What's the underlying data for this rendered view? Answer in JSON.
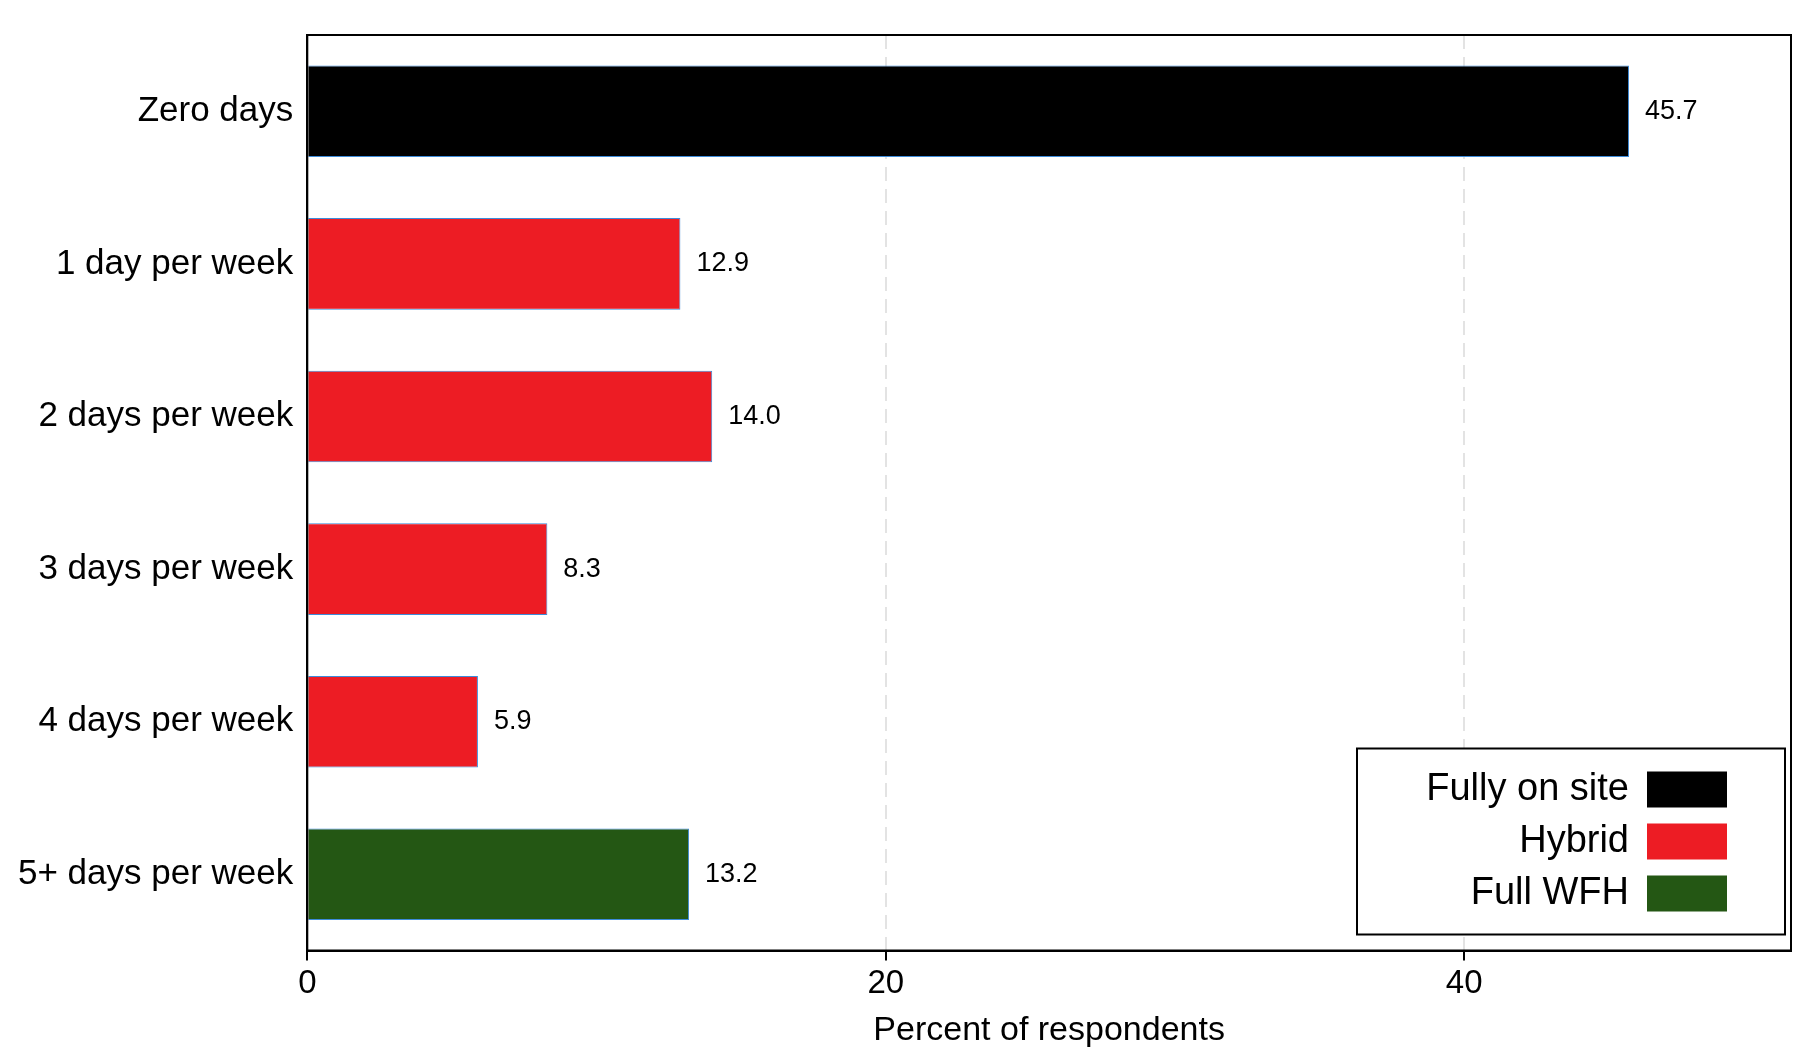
{
  "chart_data": {
    "type": "bar",
    "orientation": "horizontal",
    "xlabel": "Percent of respondents",
    "categories": [
      "Zero days",
      "1 day per week",
      "2 days per week",
      "3 days per week",
      "4 days per week",
      "5+ days per week"
    ],
    "series": [
      {
        "name": "Fully on site",
        "color": "#000000",
        "values": [
          45.7,
          null,
          null,
          null,
          null,
          null
        ],
        "value_labels": [
          "45.7",
          null,
          null,
          null,
          null,
          null
        ]
      },
      {
        "name": "Hybrid",
        "color": "#ed1c24",
        "values": [
          null,
          12.9,
          14.0,
          8.3,
          5.9,
          null
        ],
        "value_labels": [
          null,
          "12.9",
          "14.0",
          "8.3",
          "5.9",
          null
        ]
      },
      {
        "name": "Full WFH",
        "color": "#245714",
        "values": [
          null,
          null,
          null,
          null,
          null,
          13.2
        ],
        "value_labels": [
          null,
          null,
          null,
          null,
          null,
          "13.2"
        ]
      }
    ],
    "xlim": [
      0,
      51.3
    ],
    "xticks": [
      0,
      20,
      40
    ],
    "grid": "x",
    "legend": "bottom right"
  }
}
